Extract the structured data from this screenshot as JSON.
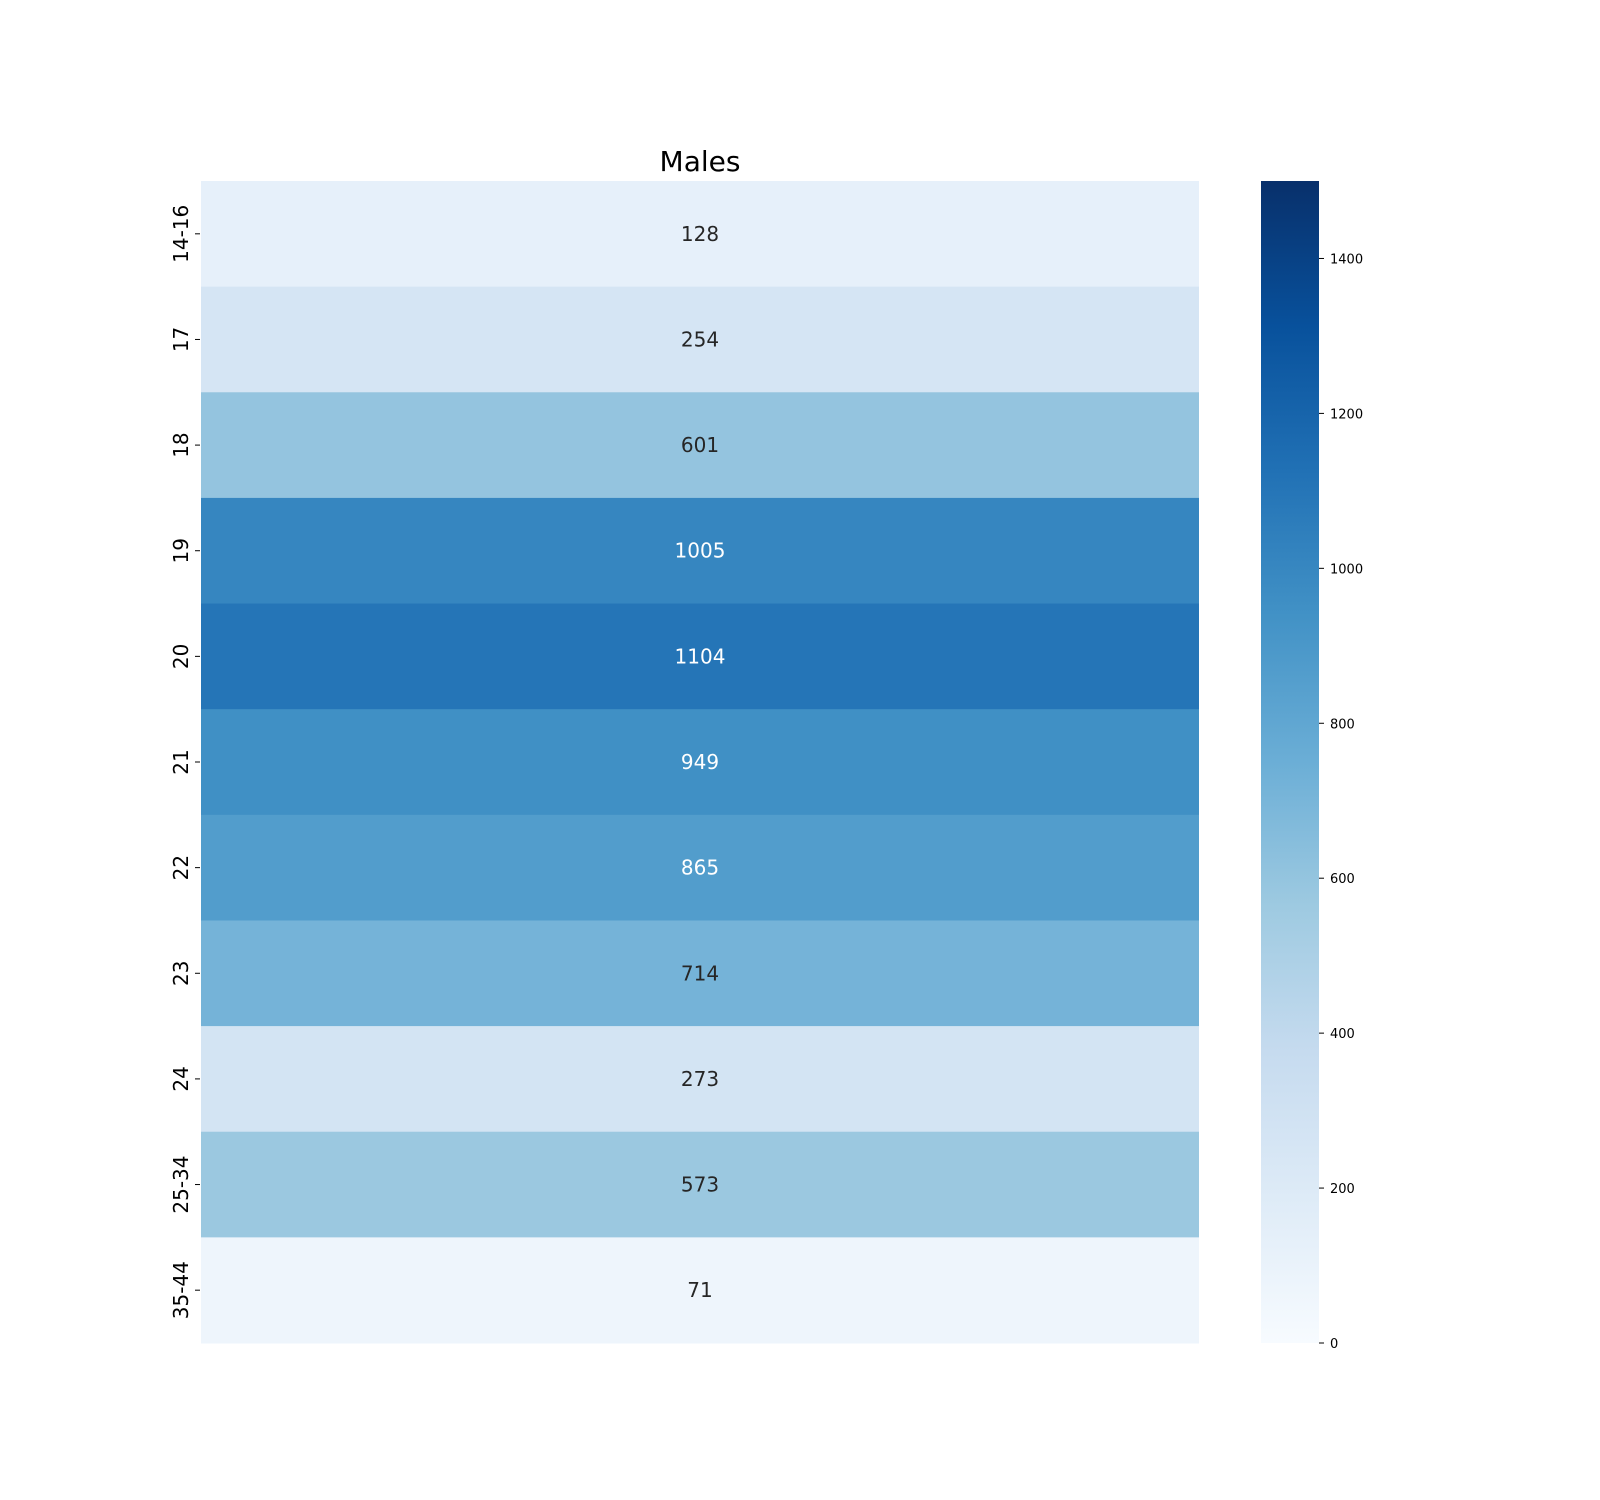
{
  "chart_data": {
    "type": "heatmap",
    "title": "Males",
    "rows": [
      "14-16",
      "17",
      "18",
      "19",
      "20",
      "21",
      "22",
      "23",
      "24",
      "25-34",
      "35-44"
    ],
    "values": [
      128,
      254,
      601,
      1005,
      1104,
      949,
      865,
      714,
      273,
      573,
      71
    ],
    "value_labels": [
      "128",
      "254",
      "601",
      "1005",
      "1104",
      "949",
      "865",
      "714",
      "273",
      "573",
      "71"
    ],
    "colorbar": {
      "range": [
        0,
        1500
      ],
      "ticks": [
        0,
        200,
        400,
        600,
        800,
        1000,
        1200,
        1400
      ],
      "tick_labels": [
        "0",
        "200",
        "400",
        "600",
        "800",
        "1000",
        "1200",
        "1400"
      ],
      "colormap": "Blues",
      "colors": [
        "#f7fbff",
        "#deebf7",
        "#c6dbef",
        "#9ecae1",
        "#6baed6",
        "#4292c6",
        "#2171b5",
        "#08519c",
        "#08306b"
      ]
    },
    "xlabel": "",
    "ylabel": "",
    "legend": "colorbar-right"
  }
}
